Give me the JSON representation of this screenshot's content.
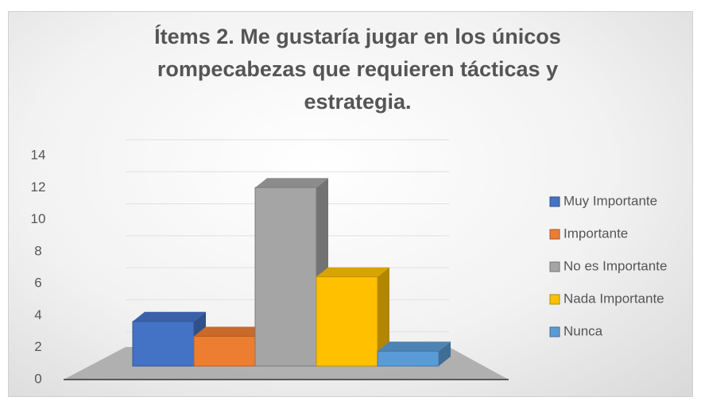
{
  "chart_data": {
    "type": "bar3d",
    "title": "Ítems 2. Me gustaría jugar en los únicos rompecabezas que requieren tácticas y estrategia.",
    "series": [
      {
        "name": "Muy Importante",
        "color": "#4472c4",
        "values": [
          3
        ]
      },
      {
        "name": "Importante",
        "color": "#ed7d31",
        "values": [
          2
        ]
      },
      {
        "name": "No es Importante",
        "color": "#a5a5a5",
        "values": [
          12
        ]
      },
      {
        "name": "Nada Importante",
        "color": "#ffc000",
        "values": [
          6
        ]
      },
      {
        "name": "Nunca",
        "color": "#5b9bd5",
        "values": [
          1
        ]
      }
    ],
    "ylim": [
      0,
      14
    ],
    "yticks": [
      0,
      2,
      4,
      6,
      8,
      10,
      12,
      14
    ],
    "grid": true,
    "legend": "right"
  }
}
